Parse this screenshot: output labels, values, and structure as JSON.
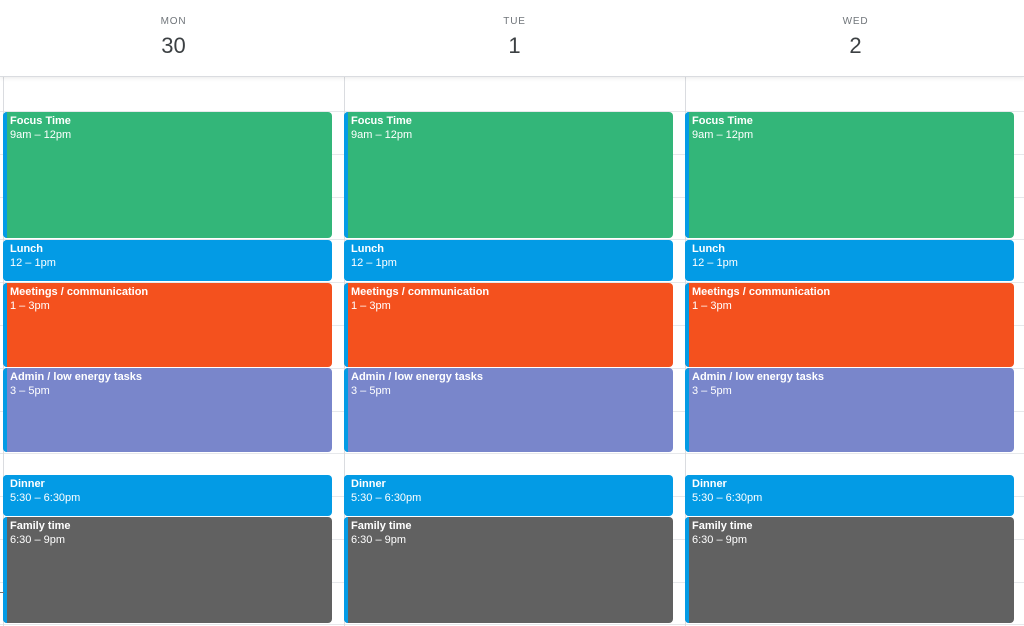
{
  "days": [
    {
      "dow": "MON",
      "date": "30"
    },
    {
      "dow": "TUE",
      "date": "1"
    },
    {
      "dow": "WED",
      "date": "2"
    }
  ],
  "events": [
    {
      "title": "Focus Time",
      "time": "9am – 12pm",
      "color": "#33b679"
    },
    {
      "title": "Lunch",
      "time": "12 – 1pm",
      "color": "#039be5"
    },
    {
      "title": "Meetings / communication",
      "time": "1 – 3pm",
      "color": "#f4511e"
    },
    {
      "title": "Admin / low energy tasks",
      "time": "3 – 5pm",
      "color": "#7986cb"
    },
    {
      "title": "Dinner",
      "time": "5:30 – 6:30pm",
      "color": "#039be5"
    },
    {
      "title": "Family time",
      "time": "6:30 – 9pm",
      "color": "#616161"
    }
  ],
  "colors": {
    "accent_bar": "#039be5",
    "gridline": "#dadce0"
  }
}
